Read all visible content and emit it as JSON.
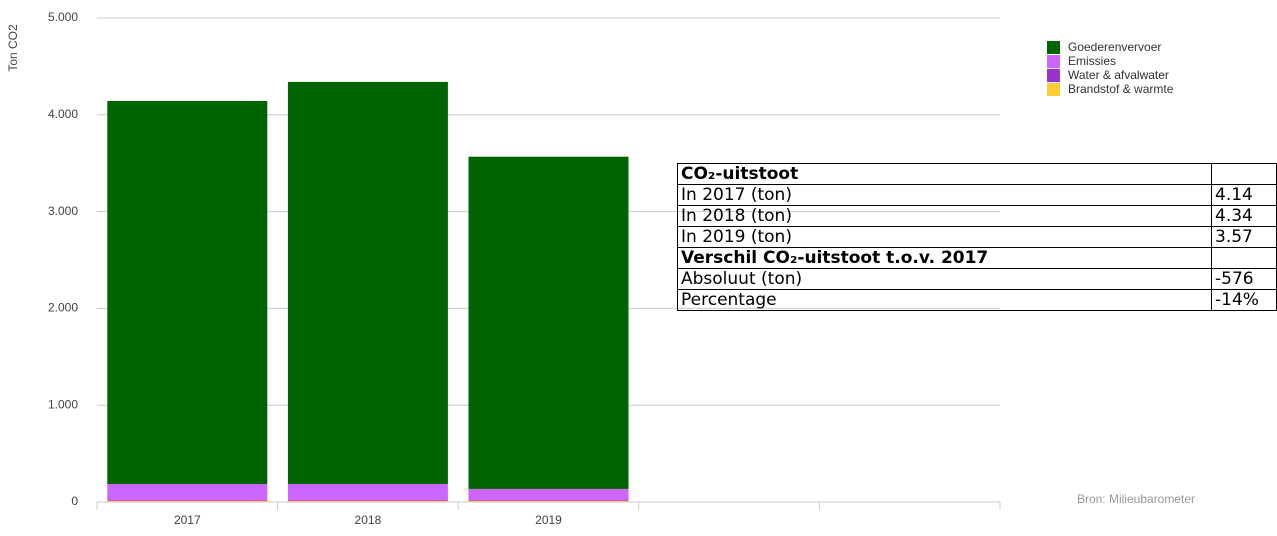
{
  "chart_data": {
    "type": "stacked_bar",
    "ylabel": "Ton CO2",
    "categories": [
      "2017",
      "2018",
      "2019",
      null,
      null
    ],
    "series": [
      {
        "name": "Goederenvervoer",
        "color": "#006400",
        "values": [
          3958,
          4155,
          3432,
          null,
          null
        ]
      },
      {
        "name": "Emissies",
        "color": "#cc66ff",
        "values": [
          170,
          170,
          120,
          null,
          null
        ]
      },
      {
        "name": "Water & afvalwater",
        "color": "#9933cc",
        "values": [
          5,
          5,
          5,
          null,
          null
        ]
      },
      {
        "name": "Brandstof & warmte",
        "color": "#ffcc33",
        "values": [
          10,
          10,
          10,
          null,
          null
        ]
      }
    ],
    "ylim": [
      0,
      5000
    ],
    "yticks": [
      0,
      {
        "value": 1000,
        "label": "1.000"
      },
      {
        "value": 2000,
        "label": "2.000"
      },
      {
        "value": 3000,
        "label": "3.000"
      },
      {
        "value": 4000,
        "label": "4.000"
      },
      {
        "value": 5000,
        "label": "5.000"
      }
    ],
    "grid": true,
    "legend": "top-right",
    "annotation": "Bron: Milieubarometer"
  },
  "table": {
    "sections": [
      {
        "heading": "CO₂-uitstoot",
        "rows": [
          [
            "In 2017 (ton)",
            "4.14"
          ],
          [
            "In 2018 (ton)",
            "4.34"
          ],
          [
            "In 2019 (ton)",
            "3.57"
          ]
        ]
      },
      {
        "heading": "Verschil CO₂-uitstoot t.o.v. 2017",
        "rows": [
          [
            "Absoluut (ton)",
            "-576"
          ],
          [
            "Percentage",
            "-14%"
          ]
        ]
      }
    ]
  }
}
